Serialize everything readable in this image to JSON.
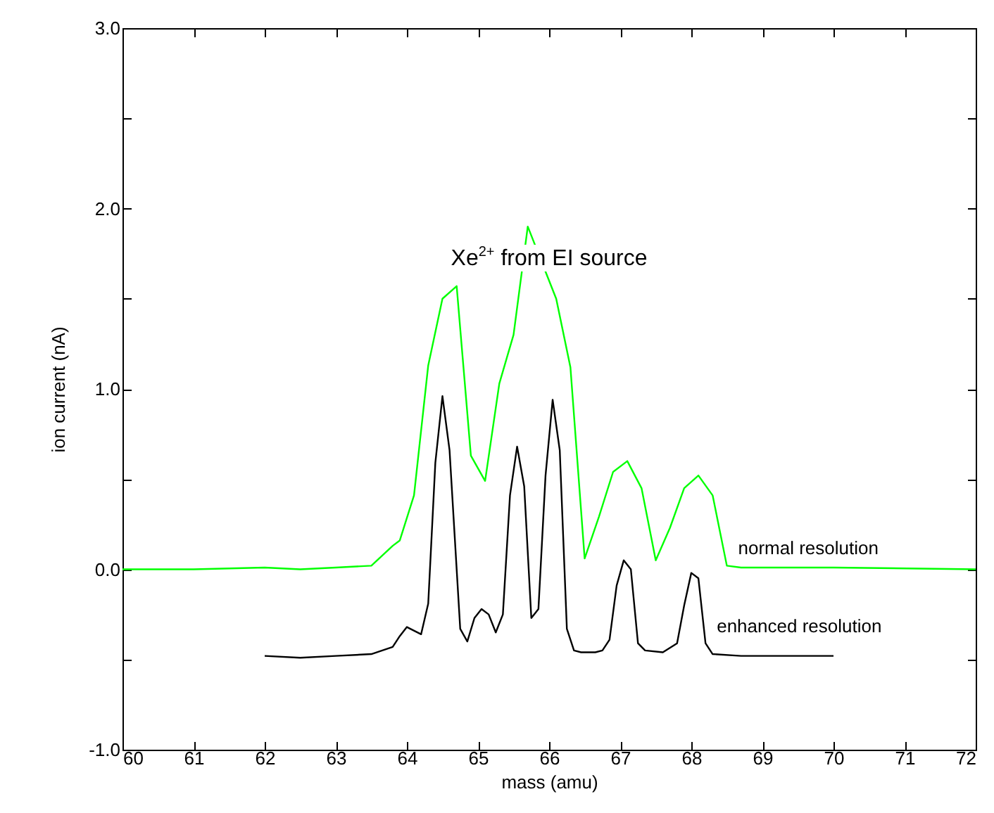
{
  "chart_data": {
    "type": "line",
    "title": "Xe$^{2+}$ from EI source",
    "xlabel": "mass (amu)",
    "ylabel": "ion current (nA)",
    "xlim": [
      60,
      72
    ],
    "xticks": [
      60,
      61,
      62,
      63,
      64,
      65,
      66,
      67,
      68,
      69,
      70,
      71,
      72
    ],
    "ylim": [
      -1,
      3
    ],
    "yticks": [
      {
        "value": -1,
        "label": "-1.0"
      },
      {
        "value": -0.5,
        "label": null
      },
      {
        "value": 0,
        "label": "0.0"
      },
      {
        "value": 0.5,
        "label": null
      },
      {
        "value": 1,
        "label": "1.0"
      },
      {
        "value": 1.5,
        "label": null
      },
      {
        "value": 2,
        "label": "2.0"
      },
      {
        "value": 2.5,
        "label": null
      },
      {
        "value": 3,
        "label": "3.0"
      }
    ],
    "grid": false,
    "legend": false,
    "marker": "none",
    "line_style": "solid",
    "series": [
      {
        "name": "normal resolution",
        "color": "#00ff00",
        "x": [
          60,
          61,
          62,
          62.5,
          63,
          63.5,
          63.8,
          63.9,
          64.1,
          64.3,
          64.5,
          64.7,
          64.9,
          65.1,
          65.3,
          65.5,
          65.7,
          66.1,
          66.3,
          66.5,
          66.7,
          66.9,
          67.1,
          67.3,
          67.5,
          67.7,
          67.9,
          68.1,
          68.3,
          68.5,
          68.7,
          70,
          72
        ],
        "values": [
          0,
          0,
          0.01,
          0,
          0.01,
          0.02,
          0.13,
          0.16,
          0.41,
          1.13,
          1.5,
          1.57,
          0.63,
          0.49,
          1.03,
          1.3,
          1.9,
          1.5,
          1.12,
          0.06,
          0.29,
          0.54,
          0.6,
          0.45,
          0.05,
          0.23,
          0.45,
          0.52,
          0.41,
          0.02,
          0.01,
          0.01,
          0
        ]
      },
      {
        "name": "enhanced resolution",
        "color": "#000000",
        "x": [
          62,
          62.5,
          63,
          63.5,
          63.8,
          63.9,
          64.0,
          64.2,
          64.3,
          64.4,
          64.5,
          64.6,
          64.75,
          64.85,
          64.95,
          65.05,
          65.15,
          65.25,
          65.35,
          65.45,
          65.55,
          65.65,
          65.75,
          65.85,
          65.95,
          66.05,
          66.15,
          66.25,
          66.35,
          66.45,
          66.65,
          66.75,
          66.85,
          66.95,
          67.05,
          67.15,
          67.25,
          67.35,
          67.6,
          67.8,
          67.9,
          68.0,
          68.1,
          68.2,
          68.3,
          68.7,
          70
        ],
        "values": [
          -0.48,
          -0.49,
          -0.48,
          -0.47,
          -0.43,
          -0.37,
          -0.32,
          -0.36,
          -0.19,
          0.59,
          0.96,
          0.66,
          -0.33,
          -0.4,
          -0.27,
          -0.22,
          -0.25,
          -0.35,
          -0.25,
          0.41,
          0.68,
          0.46,
          -0.27,
          -0.22,
          0.52,
          0.94,
          0.66,
          -0.33,
          -0.45,
          -0.46,
          -0.46,
          -0.45,
          -0.39,
          -0.09,
          0.05,
          0,
          -0.41,
          -0.45,
          -0.46,
          -0.41,
          -0.2,
          -0.02,
          -0.05,
          -0.41,
          -0.47,
          -0.48,
          -0.48
        ]
      }
    ]
  }
}
